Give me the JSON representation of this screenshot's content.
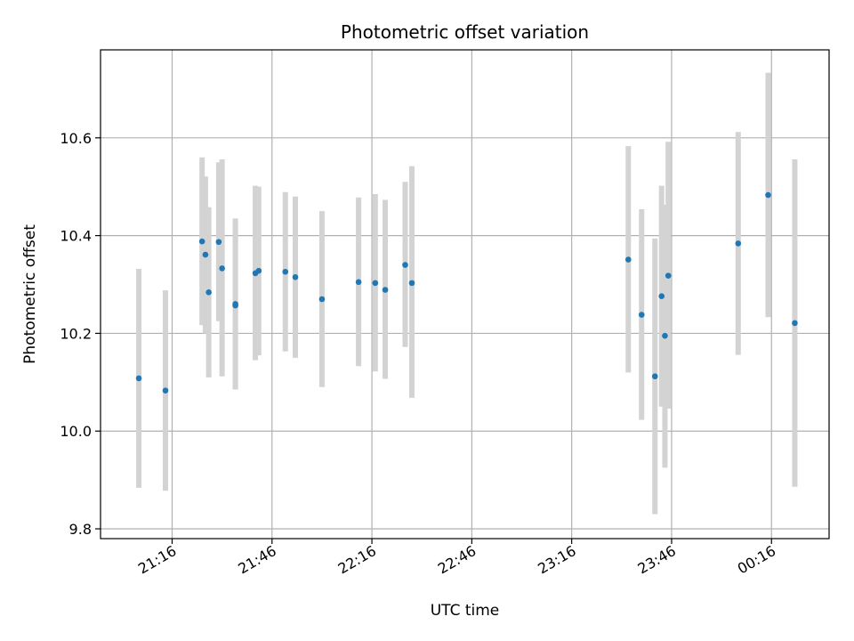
{
  "chart_data": {
    "type": "scatter",
    "title": "Photometric offset variation",
    "xlabel": "UTC time",
    "ylabel": "Photometric offset",
    "x_ticks": [
      "21:16",
      "21:46",
      "22:16",
      "22:46",
      "23:16",
      "23:46",
      "00:16"
    ],
    "y_ticks": [
      "9.8",
      "10.0",
      "10.2",
      "10.4",
      "10.6"
    ],
    "xlim_minutes_from_2116": [
      -21.5,
      197.3
    ],
    "ylim": [
      9.78,
      10.78
    ],
    "grid": true,
    "legend": "none",
    "colors": {
      "point": "#1f77b4",
      "errorbar": "#d3d3d3",
      "grid": "#b0b0b0"
    },
    "points": [
      {
        "t": "21:06",
        "y": 10.108,
        "lo": 9.884,
        "hi": 10.332
      },
      {
        "t": "21:14",
        "y": 10.083,
        "lo": 9.878,
        "hi": 10.288
      },
      {
        "t": "21:25",
        "y": 10.388,
        "lo": 10.217,
        "hi": 10.56
      },
      {
        "t": "21:26",
        "y": 10.361,
        "lo": 10.2,
        "hi": 10.521
      },
      {
        "t": "21:27",
        "y": 10.284,
        "lo": 10.11,
        "hi": 10.458
      },
      {
        "t": "21:30",
        "y": 10.387,
        "lo": 10.225,
        "hi": 10.55
      },
      {
        "t": "21:31",
        "y": 10.333,
        "lo": 10.112,
        "hi": 10.556
      },
      {
        "t": "21:35",
        "y": 10.26,
        "lo": 10.085,
        "hi": 10.435
      },
      {
        "t": "21:35",
        "y": 10.257,
        "lo": 10.085,
        "hi": 10.43
      },
      {
        "t": "21:41",
        "y": 10.323,
        "lo": 10.145,
        "hi": 10.502
      },
      {
        "t": "21:42",
        "y": 10.328,
        "lo": 10.155,
        "hi": 10.5
      },
      {
        "t": "21:50",
        "y": 10.326,
        "lo": 10.163,
        "hi": 10.489
      },
      {
        "t": "21:53",
        "y": 10.315,
        "lo": 10.15,
        "hi": 10.48
      },
      {
        "t": "22:01",
        "y": 10.27,
        "lo": 10.09,
        "hi": 10.45
      },
      {
        "t": "22:12",
        "y": 10.305,
        "lo": 10.133,
        "hi": 10.478
      },
      {
        "t": "22:17",
        "y": 10.303,
        "lo": 10.122,
        "hi": 10.485
      },
      {
        "t": "22:20",
        "y": 10.289,
        "lo": 10.107,
        "hi": 10.473
      },
      {
        "t": "22:26",
        "y": 10.34,
        "lo": 10.172,
        "hi": 10.51
      },
      {
        "t": "22:28",
        "y": 10.303,
        "lo": 10.068,
        "hi": 10.542
      },
      {
        "t": "23:33",
        "y": 10.351,
        "lo": 10.12,
        "hi": 10.583
      },
      {
        "t": "23:37",
        "y": 10.238,
        "lo": 10.023,
        "hi": 10.454
      },
      {
        "t": "23:41",
        "y": 10.112,
        "lo": 9.83,
        "hi": 10.394
      },
      {
        "t": "23:43",
        "y": 10.276,
        "lo": 10.05,
        "hi": 10.502
      },
      {
        "t": "23:44",
        "y": 10.195,
        "lo": 9.925,
        "hi": 10.463
      },
      {
        "t": "23:45",
        "y": 10.318,
        "lo": 10.046,
        "hi": 10.592
      },
      {
        "t": "00:06",
        "y": 10.384,
        "lo": 10.156,
        "hi": 10.612
      },
      {
        "t": "00:15",
        "y": 10.483,
        "lo": 10.233,
        "hi": 10.733
      },
      {
        "t": "00:23",
        "y": 10.221,
        "lo": 9.886,
        "hi": 10.556
      }
    ]
  }
}
